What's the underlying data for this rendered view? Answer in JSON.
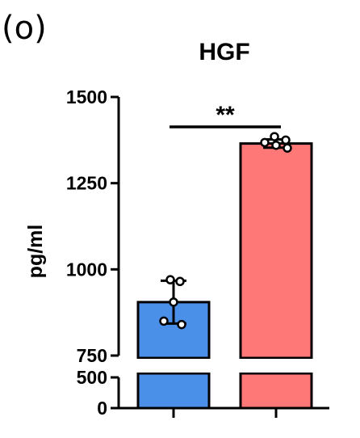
{
  "panel_label": "(o)",
  "chart_data": {
    "type": "bar",
    "title": "HGF",
    "ylabel": "pg/ml",
    "xlabel": "",
    "categories": [
      "",
      ""
    ],
    "values": [
      905,
      1365
    ],
    "errors": [
      62,
      12
    ],
    "points": [
      [
        970,
        965,
        905,
        850,
        840
      ],
      [
        1385,
        1375,
        1368,
        1360,
        1352
      ]
    ],
    "colors": [
      "#4A90E8",
      "#FF7878"
    ],
    "y_ticks_upper": [
      "750",
      "1000",
      "1250",
      "1500"
    ],
    "y_ticks_lower": [
      "0",
      "500"
    ],
    "axis_break": {
      "lower": [
        0,
        500
      ],
      "upper": [
        750,
        1500
      ]
    },
    "significance": "**"
  }
}
